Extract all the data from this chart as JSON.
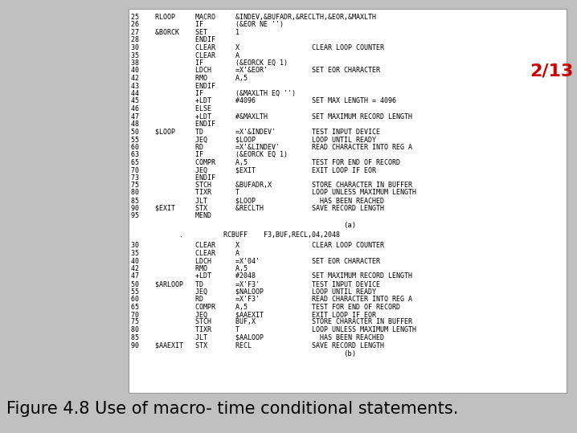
{
  "bg_color": "#c0c0c0",
  "panel_color": "#ffffff",
  "panel_border": "#999999",
  "red_label": "2/13",
  "red_color": "#cc0000",
  "caption": "Figure 4.8 Use of macro- time conditional statements.",
  "caption_fontsize": 15,
  "red_fontsize": 16,
  "code_fontsize": 6.0,
  "section_a_label": "(a)",
  "section_b_label": "(b)",
  "macro_line": "          .          RCBUFF    F3,BUF,RECL,04,2048",
  "lines_a": [
    "25    RLOOP     MACRO     &INDEV,&BUFADR,&RECLTH,&EOR,&MAXLTH",
    "26              IF        (&EOR NE '')",
    "27    &BORCK    SET       1",
    "28              ENDIF",
    "30              CLEAR     X                  CLEAR LOOP COUNTER",
    "35              CLEAR     A",
    "38              IF        (&EORCK EQ 1)",
    "40              LDCH      =X'&EOR'           SET EOR CHARACTER",
    "42              RMO       A,5",
    "43              ENDIF",
    "44              IF        (&MAXLTH EQ '')",
    "45              +LDT      #4096              SET MAX LENGTH = 4096",
    "46              ELSE",
    "47              +LDT      #&MAXLTH           SET MAXIMUM RECORD LENGTH",
    "48              ENDIF",
    "50    $LOOP     TD        =X'&INDEV'         TEST INPUT DEVICE",
    "55              JEQ       $LOOP              LOOP UNTIL READY",
    "60              RD        =X'&LINDEV'        READ CHARACTER INTO REG A",
    "63              IF        (&EORCK EQ 1)",
    "65              COMPR     A,5                TEST FOR END OF RECORD",
    "70              JEQ       $EXIT              EXIT LOOP IF EOR",
    "73              ENDIF",
    "75              STCH      &BUFADR,X          STORE CHARACTER IN BUFFER",
    "80              TIXR      T                  LOOP UNLESS MAXIMUM LENGTH",
    "85              JLT       $LOOP                HAS BEEN REACHED",
    "90    $EXIT     STX       &RECLTH            SAVE RECORD LENGTH",
    "95              MEND"
  ],
  "lines_b": [
    "30              CLEAR     X                  CLEAR LOOP COUNTER",
    "35              CLEAR     A",
    "40              LDCH      =X'04'             SET EOR CHARACTER",
    "42              RMO       A,5",
    "47              +LDT      #2048              SET MAXIMUM RECORD LENGTH",
    "50    $ARLOOP   TD        =X'F3'             TEST INPUT DEVICE",
    "55              JEQ       $NALOOP            LOOP UNTIL READY",
    "60              RD        =X'F3'             READ CHARACTER INTO REG A",
    "65              COMPR     A,5                TEST FOR END OF RECORD",
    "70              JEQ       $AAEXIT            EXIT LOOP IF EOR",
    "75              STCH      BUF,X              STORE CHARACTER IN BUFFER",
    "80              TIXR      T                  LOOP UNLESS MAXIMUM LENGTH",
    "85              JLT       $AALOOP              HAS BEEN REACHED",
    "90    $AAEXIT   STX       RECL               SAVE RECORD LENGTH"
  ]
}
